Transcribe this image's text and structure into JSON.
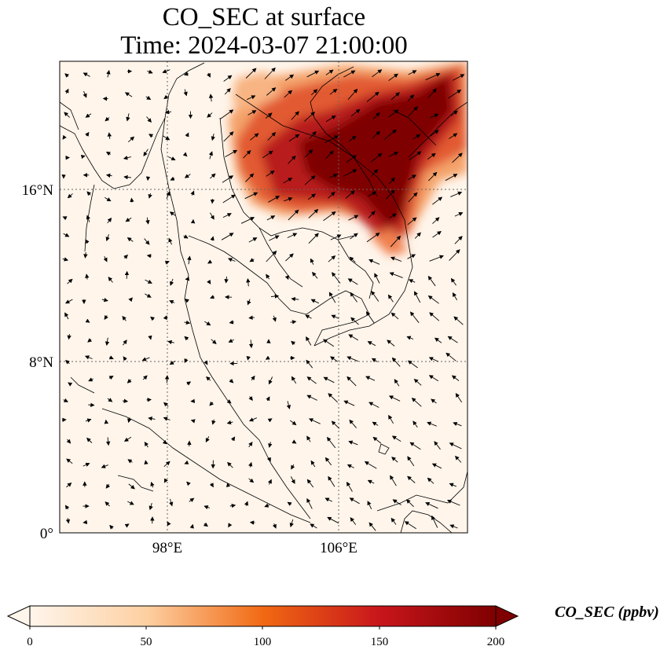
{
  "title": {
    "line1": "CO_SEC at surface",
    "line2": "Time: 2024-03-07 21:00:00"
  },
  "map": {
    "extent": {
      "lon_min": 93,
      "lon_max": 112,
      "lat_min": 0,
      "lat_max": 22
    },
    "latitude_ticks": [
      "16°N",
      "8°N",
      "0°"
    ],
    "longitude_ticks": [
      "98°E",
      "106°E"
    ],
    "gridlines": "dotted",
    "field_colormap": [
      "#fff5eb",
      "#fdd9b2",
      "#fdae6b",
      "#f16913",
      "#d94801",
      "#a50f15",
      "#67000d"
    ],
    "plume_description_hidden": false
  },
  "colorbar": {
    "label": "CO_SEC (ppbv)",
    "ticks": [
      "0",
      "50",
      "100",
      "150",
      "200"
    ],
    "range": [
      0,
      200
    ],
    "extend": "both"
  }
}
